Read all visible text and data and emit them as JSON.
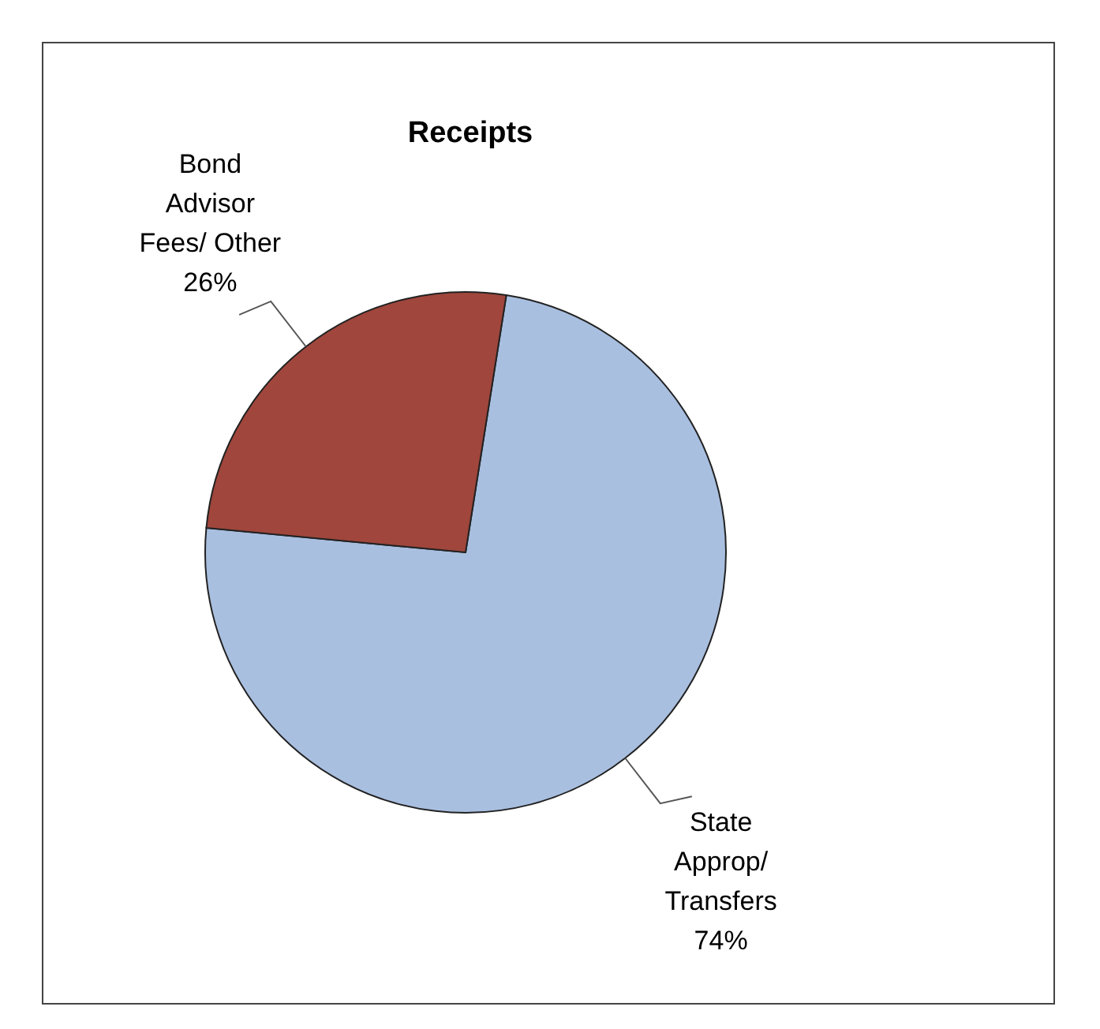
{
  "chart_data": {
    "type": "pie",
    "title": "Receipts",
    "categories": [
      "State Approp/ Transfers",
      "Bond Advisor Fees/ Other"
    ],
    "values": [
      74,
      26
    ],
    "colors": [
      "#a9bfe0",
      "#a0463c"
    ],
    "value_labels": [
      "74%",
      "26%"
    ]
  }
}
